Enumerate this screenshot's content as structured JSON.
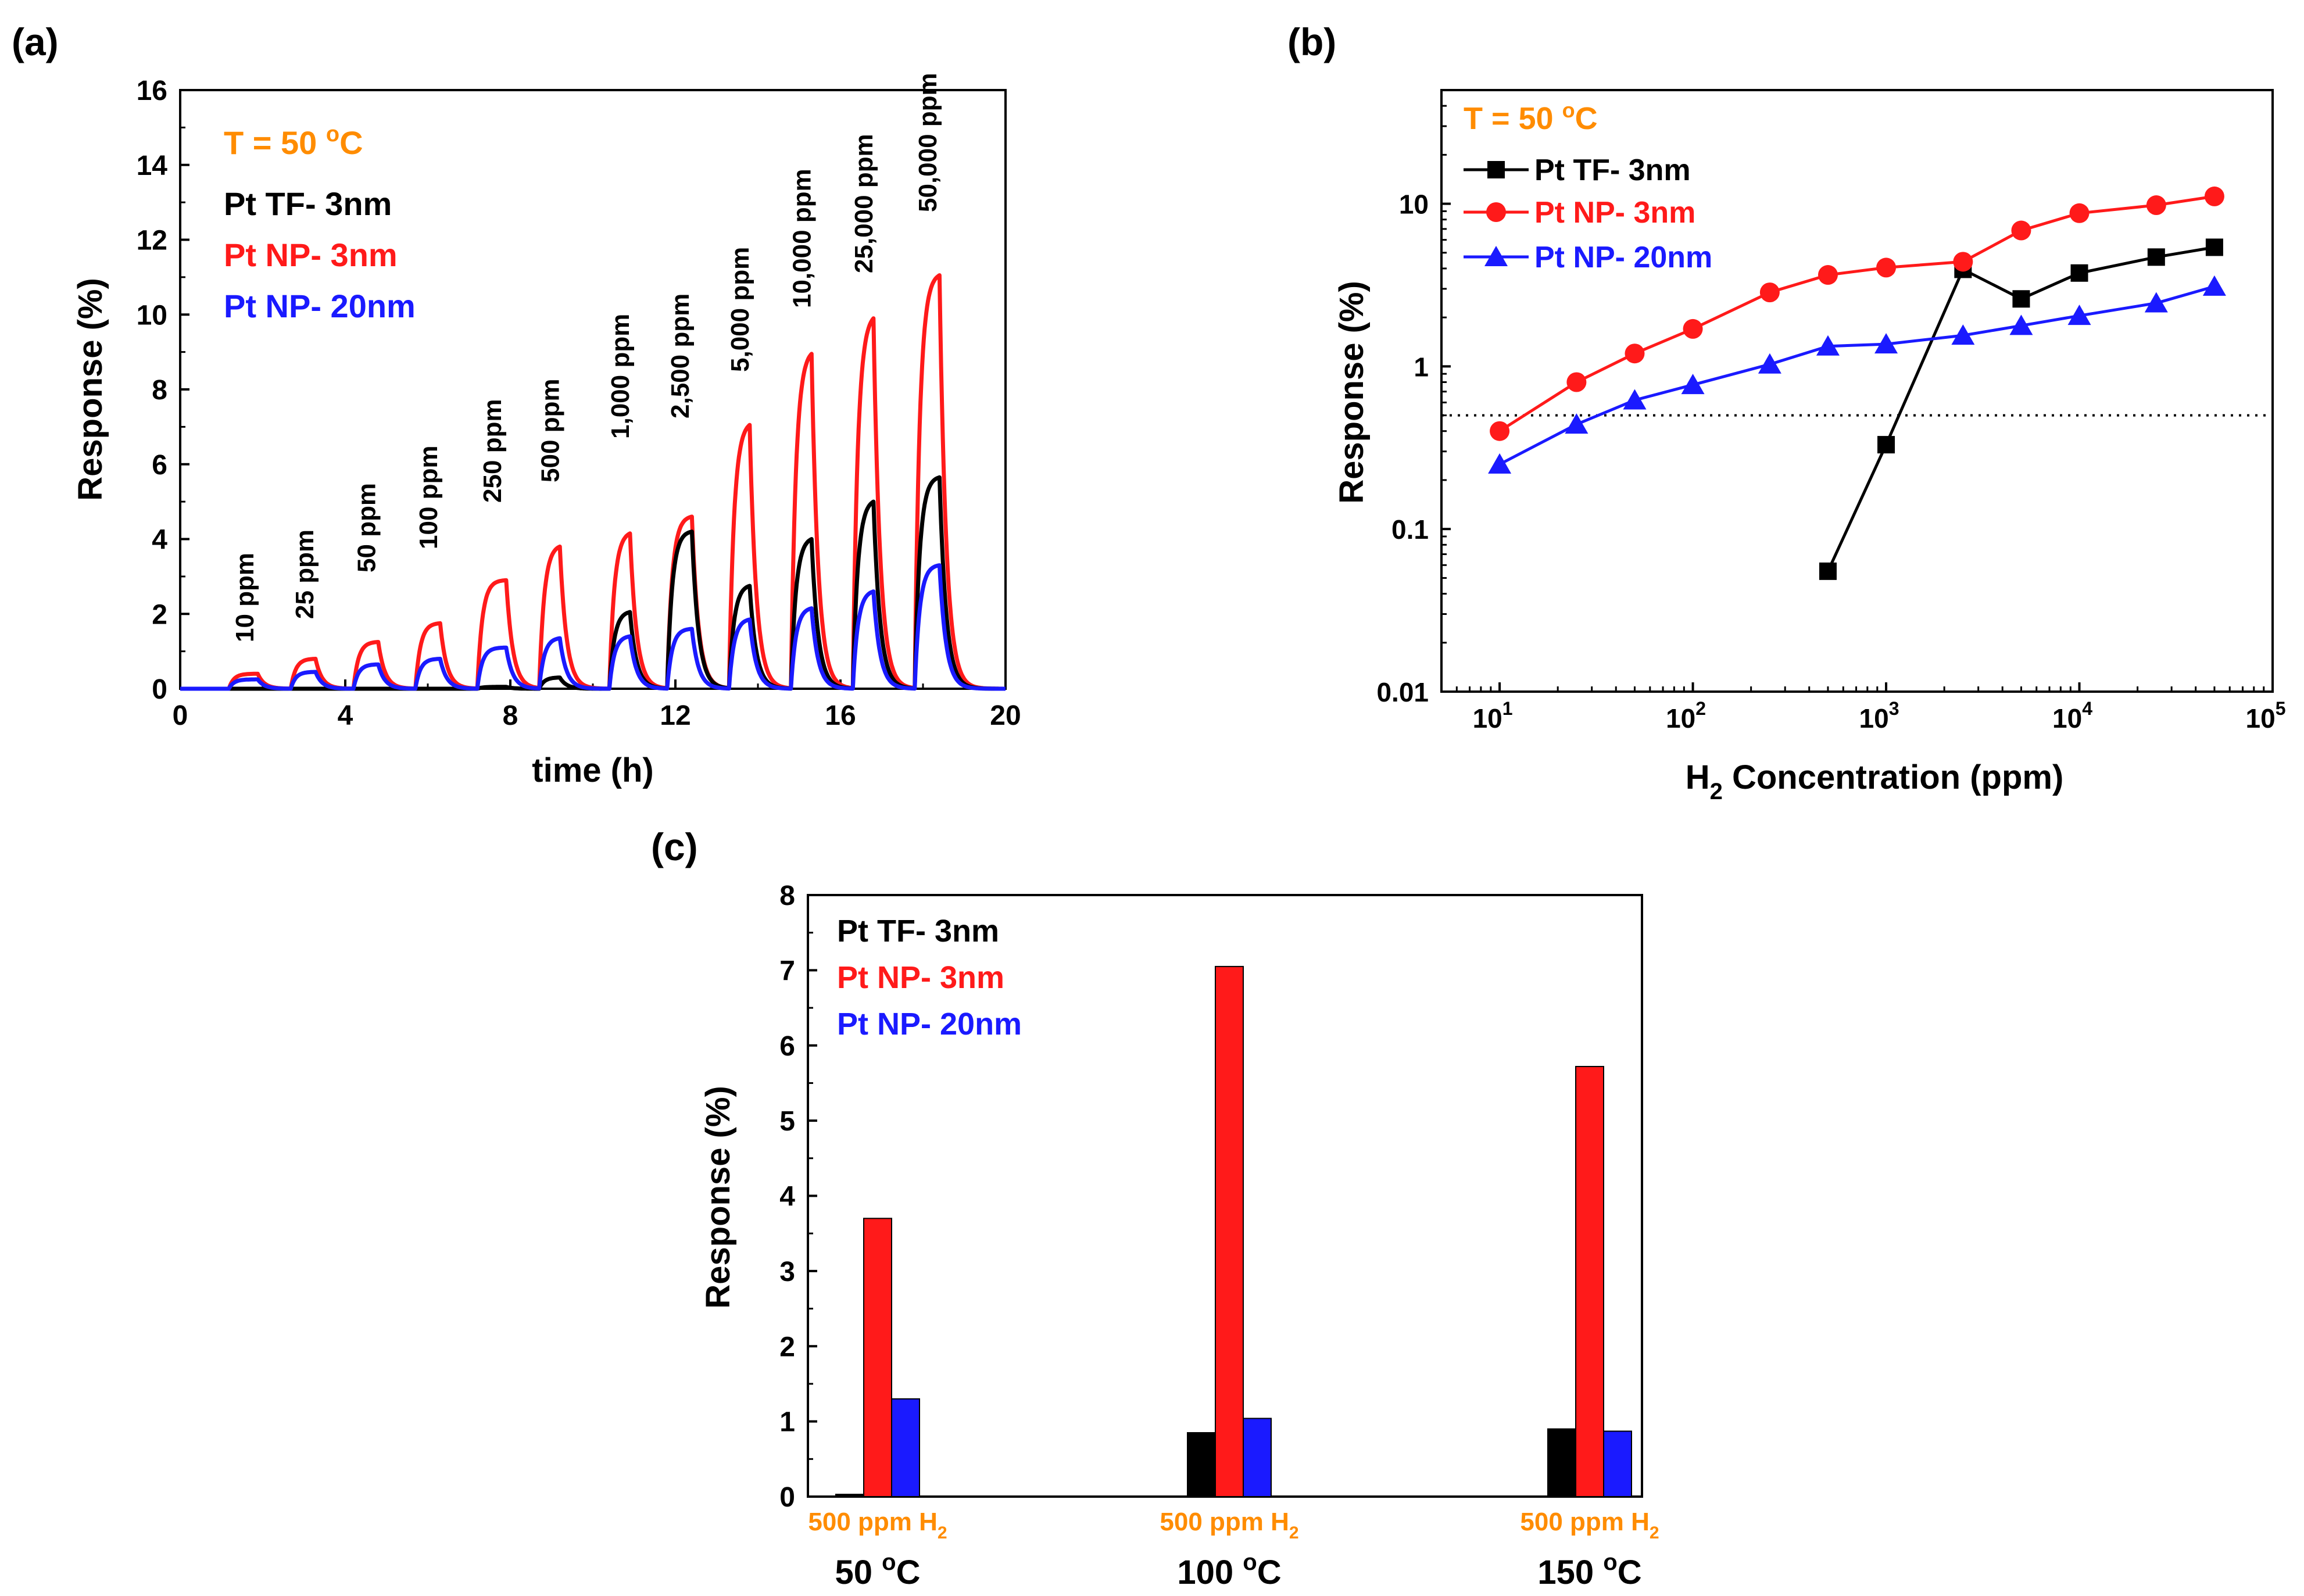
{
  "colors": {
    "black": "#000000",
    "red": "#ff1a1a",
    "blue": "#1a1aff",
    "orange": "#ff8c00",
    "grid": "#000000"
  },
  "panel_labels": {
    "a": "(a)",
    "b": "(b)",
    "c": "(c)"
  },
  "chart_data": [
    {
      "id": "a",
      "type": "line",
      "title": "",
      "xlabel": "time (h)",
      "ylabel": "Response (%)",
      "xlim": [
        0,
        20
      ],
      "ylim": [
        0,
        16
      ],
      "xticks": [
        "0",
        "4",
        "8",
        "12",
        "16",
        "20"
      ],
      "yticks": [
        "0",
        "2",
        "4",
        "6",
        "8",
        "10",
        "12",
        "14",
        "16"
      ],
      "xtick_values": [
        0,
        4,
        8,
        12,
        16,
        20
      ],
      "ytick_values": [
        0,
        2,
        4,
        6,
        8,
        10,
        12,
        14,
        16
      ],
      "legend_text": {
        "temp_line1": "T = 50 ",
        "temp_sup": "o",
        "temp_line2": "C",
        "entries": [
          "Pt TF- 3nm",
          "Pt NP- 3nm",
          "Pt NP- 20nm"
        ]
      },
      "pulse_annotations": [
        "10 ppm",
        "25 ppm",
        "50 ppm",
        "100 ppm",
        "250 ppm",
        "500 ppm",
        "1,000 ppm",
        "2,500 ppm",
        "5,000 ppm",
        "10,000 ppm",
        "25,000 ppm",
        "50,000 ppm"
      ],
      "pulse_start_h": [
        1.2,
        2.7,
        4.2,
        5.7,
        7.2,
        8.7,
        10.4,
        11.8,
        13.3,
        14.8,
        16.3,
        17.8
      ],
      "pulse_end_h": [
        1.9,
        3.3,
        4.8,
        6.3,
        7.9,
        9.2,
        10.9,
        12.4,
        13.8,
        15.3,
        16.8,
        18.4
      ],
      "series": [
        {
          "name": "Pt TF- 3nm",
          "color": "#000000",
          "peaks": [
            0.0,
            0.0,
            0.0,
            0.0,
            0.05,
            0.3,
            2.05,
            4.2,
            2.75,
            4.0,
            5.0,
            5.65
          ]
        },
        {
          "name": "Pt NP- 3nm",
          "color": "#ff1a1a",
          "peaks": [
            0.4,
            0.8,
            1.25,
            1.75,
            2.9,
            3.8,
            4.15,
            4.6,
            7.05,
            8.95,
            9.9,
            11.05
          ]
        },
        {
          "name": "Pt NP- 20nm",
          "color": "#1a1aff",
          "peaks": [
            0.25,
            0.45,
            0.65,
            0.8,
            1.1,
            1.35,
            1.4,
            1.6,
            1.85,
            2.15,
            2.6,
            3.3
          ]
        }
      ]
    },
    {
      "id": "b",
      "type": "line",
      "scale": "log-log",
      "title": "",
      "xlabel_main": "H",
      "xlabel_sub": "2",
      "xlabel_rest": " Concentration (ppm)",
      "ylabel": "Response (%)",
      "xlim": [
        5,
        100000
      ],
      "ylim": [
        0.01,
        50
      ],
      "yticks": [
        "0.01",
        "0.1",
        "1",
        "10"
      ],
      "ytick_values": [
        0.01,
        0.1,
        1,
        10
      ],
      "xtick_exponents": [
        "1",
        "2",
        "3",
        "4",
        "5"
      ],
      "xtick_base": "10",
      "threshold_line": 0.5,
      "legend_text": {
        "temp_line1": "T = 50 ",
        "temp_sup": "o",
        "temp_line2": "C",
        "entries": [
          "Pt TF- 3nm",
          "Pt NP- 3nm",
          "Pt NP- 20nm"
        ]
      },
      "series": [
        {
          "name": "Pt TF- 3nm",
          "color": "#000000",
          "marker": "square",
          "x": [
            500,
            1000,
            2500,
            5000,
            10000,
            25000,
            50000
          ],
          "y": [
            0.055,
            0.33,
            3.95,
            2.6,
            3.75,
            4.7,
            5.4
          ]
        },
        {
          "name": "Pt NP- 3nm",
          "color": "#ff1a1a",
          "marker": "circle",
          "x": [
            10,
            25,
            50,
            100,
            250,
            500,
            1000,
            2500,
            5000,
            10000,
            25000,
            50000
          ],
          "y": [
            0.4,
            0.8,
            1.2,
            1.7,
            2.85,
            3.65,
            4.05,
            4.4,
            6.85,
            8.75,
            9.8,
            11.1
          ]
        },
        {
          "name": "Pt NP- 20nm",
          "color": "#1a1aff",
          "marker": "triangle",
          "x": [
            10,
            25,
            50,
            100,
            250,
            500,
            1000,
            2500,
            5000,
            10000,
            25000,
            50000
          ],
          "y": [
            0.25,
            0.44,
            0.62,
            0.77,
            1.03,
            1.33,
            1.37,
            1.55,
            1.78,
            2.05,
            2.45,
            3.1
          ]
        }
      ]
    },
    {
      "id": "c",
      "type": "bar",
      "title": "",
      "xlabel": "",
      "ylabel": "Response (%)",
      "ylim": [
        0,
        8
      ],
      "yticks": [
        "0",
        "1",
        "2",
        "3",
        "4",
        "5",
        "6",
        "7",
        "8"
      ],
      "ytick_values": [
        0,
        1,
        2,
        3,
        4,
        5,
        6,
        7,
        8
      ],
      "categories": [
        "50",
        "100",
        "150"
      ],
      "category_unit_sup": "o",
      "category_unit": "C",
      "category_sublabel_main": "500 ppm H",
      "category_sublabel_sub": "2",
      "legend_text": {
        "entries": [
          "Pt TF- 3nm",
          "Pt NP- 3nm",
          "Pt NP- 20nm"
        ]
      },
      "series": [
        {
          "name": "Pt TF- 3nm",
          "color": "#000000",
          "values": [
            0.03,
            0.85,
            0.9
          ]
        },
        {
          "name": "Pt NP- 3nm",
          "color": "#ff1a1a",
          "values": [
            3.7,
            7.05,
            5.72
          ]
        },
        {
          "name": "Pt NP- 20nm",
          "color": "#1a1aff",
          "values": [
            1.3,
            1.04,
            0.87
          ]
        }
      ]
    }
  ]
}
